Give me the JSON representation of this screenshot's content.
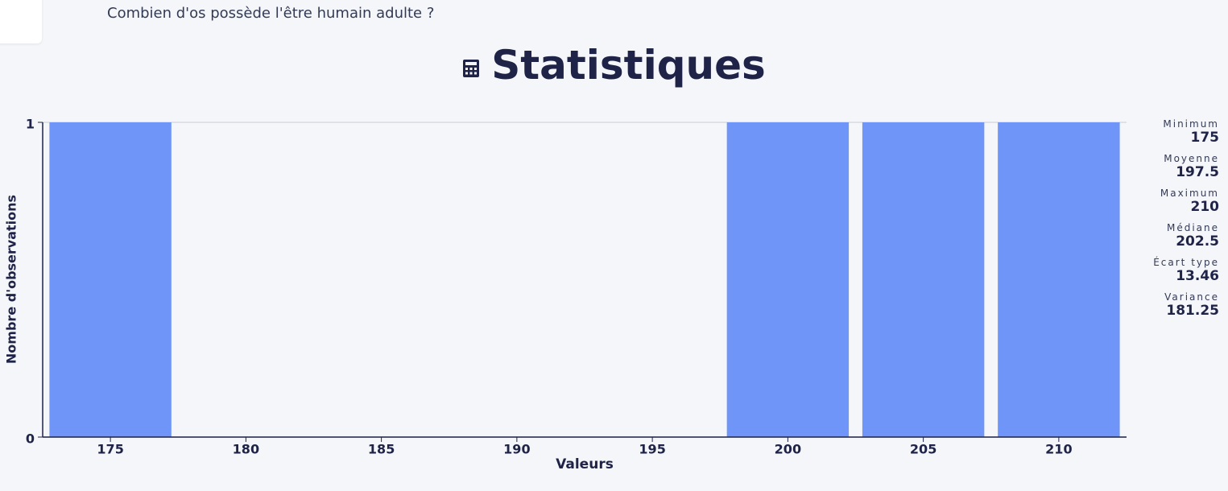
{
  "question": "Combien d'os possède l'être humain adulte ?",
  "chart_data": {
    "type": "bar",
    "title": "Statistiques",
    "x": [
      175,
      200,
      205,
      210
    ],
    "values": [
      1,
      1,
      1,
      1
    ],
    "color": "#6e95f7",
    "xlabel": "Valeurs",
    "ylabel": "Nombre d'observations",
    "xlim": [
      172.5,
      212.5
    ],
    "xticks": [
      175,
      180,
      185,
      190,
      195,
      200,
      205,
      210
    ],
    "ylim": [
      0,
      1
    ],
    "yticks": [
      0,
      1
    ]
  },
  "stats": [
    {
      "label": "Minimum",
      "value": 175
    },
    {
      "label": "Moyenne",
      "value": 197.5
    },
    {
      "label": "Maximum",
      "value": 210
    },
    {
      "label": "Médiane",
      "value": 202.5
    },
    {
      "label": "Écart type",
      "value": 13.46
    },
    {
      "label": "Variance",
      "value": 181.25
    }
  ]
}
